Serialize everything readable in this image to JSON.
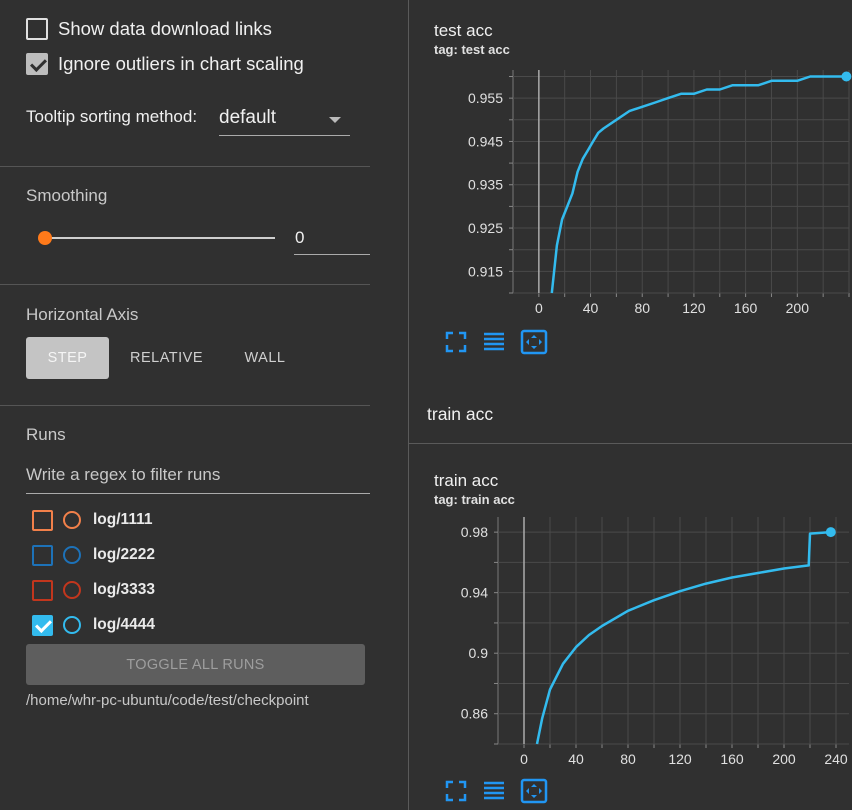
{
  "options": {
    "show_download_links": {
      "label": "Show data download links",
      "checked": false
    },
    "ignore_outliers": {
      "label": "Ignore outliers in chart scaling",
      "checked": true
    },
    "tooltip_sorting": {
      "label": "Tooltip sorting method:",
      "value": "default"
    }
  },
  "smoothing": {
    "title": "Smoothing",
    "value": "0"
  },
  "horizontal_axis": {
    "title": "Horizontal Axis",
    "buttons": [
      "STEP",
      "RELATIVE",
      "WALL"
    ],
    "selected": "STEP"
  },
  "runs": {
    "title": "Runs",
    "filter_placeholder": "Write a regex to filter runs",
    "items": [
      {
        "name": "log/1111",
        "color": "#f2804a",
        "checked": false
      },
      {
        "name": "log/2222",
        "color": "#1d72b8",
        "checked": false
      },
      {
        "name": "log/3333",
        "color": "#c2361d",
        "checked": false
      },
      {
        "name": "log/4444",
        "color": "#33bbee",
        "checked": true
      }
    ],
    "toggle_all_label": "TOGGLE ALL RUNS",
    "path": "/home/whr-pc-ubuntu/code/test/checkpoint"
  },
  "charts": {
    "test": {
      "title": "test acc",
      "tag": "tag: test acc"
    },
    "group_title": "train acc",
    "train": {
      "title": "train acc",
      "tag": "tag: train acc"
    }
  },
  "chart_data": [
    {
      "type": "line",
      "title": "test acc",
      "series": [
        {
          "color": "#33bbee"
        }
      ],
      "xticks": [
        0,
        40,
        80,
        120,
        160,
        200
      ],
      "yticks": [
        0.915,
        0.925,
        0.935,
        0.945,
        0.955
      ],
      "xlim": [
        -20,
        240
      ],
      "ylim": [
        0.91,
        0.9615
      ],
      "grid": true,
      "x": [
        10,
        14,
        18,
        22,
        26,
        30,
        34,
        38,
        42,
        46,
        50,
        60,
        70,
        80,
        90,
        100,
        110,
        120,
        130,
        140,
        150,
        160,
        170,
        180,
        190,
        200,
        210,
        220,
        230,
        238
      ],
      "y": [
        0.91,
        0.921,
        0.927,
        0.93,
        0.933,
        0.938,
        0.941,
        0.943,
        0.945,
        0.947,
        0.948,
        0.95,
        0.952,
        0.953,
        0.954,
        0.955,
        0.956,
        0.956,
        0.957,
        0.957,
        0.958,
        0.958,
        0.958,
        0.959,
        0.959,
        0.959,
        0.96,
        0.96,
        0.96,
        0.96
      ]
    },
    {
      "type": "line",
      "title": "train acc",
      "series": [
        {
          "color": "#33bbee"
        }
      ],
      "xticks": [
        0,
        40,
        80,
        120,
        160,
        200,
        240
      ],
      "yticks": [
        0.86,
        0.9,
        0.94,
        0.98
      ],
      "xlim": [
        -20,
        250
      ],
      "ylim": [
        0.84,
        0.99
      ],
      "grid": true,
      "x": [
        10,
        14,
        20,
        30,
        40,
        50,
        60,
        80,
        100,
        120,
        140,
        160,
        180,
        200,
        219,
        220,
        236
      ],
      "y": [
        0.84,
        0.857,
        0.876,
        0.893,
        0.904,
        0.912,
        0.918,
        0.928,
        0.935,
        0.941,
        0.946,
        0.95,
        0.953,
        0.956,
        0.958,
        0.979,
        0.98
      ]
    }
  ]
}
